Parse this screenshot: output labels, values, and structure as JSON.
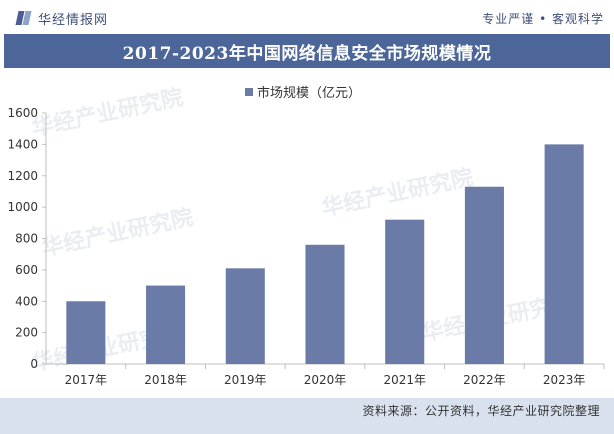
{
  "header": {
    "brand_name": "华经情报网",
    "slogan": "专业严谨 • 客观科学"
  },
  "title": "2017-2023年中国网络信息安全市场规模情况",
  "watermark": "华经产业研究院",
  "source": "资料来源：公开资料，华经产业研究院整理",
  "colors": {
    "bar": "#6b7ba7",
    "title_band": "#4c6699",
    "source_band": "#d9e1ee"
  },
  "chart_data": {
    "type": "bar",
    "categories": [
      "2017年",
      "2018年",
      "2019年",
      "2020年",
      "2021年",
      "2022年",
      "2023年"
    ],
    "series": [
      {
        "name": "市场规模（亿元）",
        "values": [
          400,
          500,
          610,
          760,
          920,
          1130,
          1400
        ]
      }
    ],
    "ylim": [
      0,
      1600
    ],
    "yticks": [
      0,
      200,
      400,
      600,
      800,
      1000,
      1200,
      1400,
      1600
    ],
    "legend_position": "top-center",
    "grid": false
  }
}
